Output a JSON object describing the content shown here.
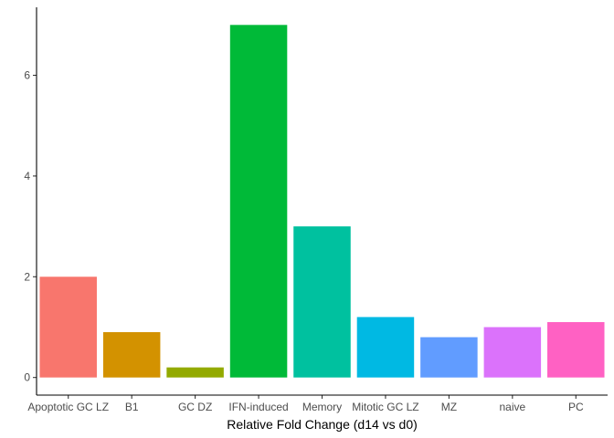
{
  "chart_data": {
    "type": "bar",
    "title": "",
    "xlabel": "Relative Fold Change (d14 vs d0)",
    "ylabel": "",
    "categories": [
      "Apoptotic GC LZ",
      "B1",
      "GC DZ",
      "IFN-induced",
      "Memory",
      "Mitotic GC LZ",
      "MZ",
      "naive",
      "PC"
    ],
    "values": [
      2.0,
      0.9,
      0.2,
      7.0,
      3.0,
      1.2,
      0.8,
      1.0,
      1.1
    ],
    "colors": [
      "#F8766D",
      "#D39200",
      "#93AA00",
      "#00BA38",
      "#00C19F",
      "#00B9E3",
      "#619CFF",
      "#DB72FB",
      "#FF61C3"
    ],
    "ylim": [
      -0.35,
      7.35
    ],
    "yticks": [
      0,
      2,
      4,
      6
    ],
    "yticklabels": [
      "0",
      "2",
      "4",
      "6"
    ],
    "grid": false,
    "legend": "none"
  }
}
